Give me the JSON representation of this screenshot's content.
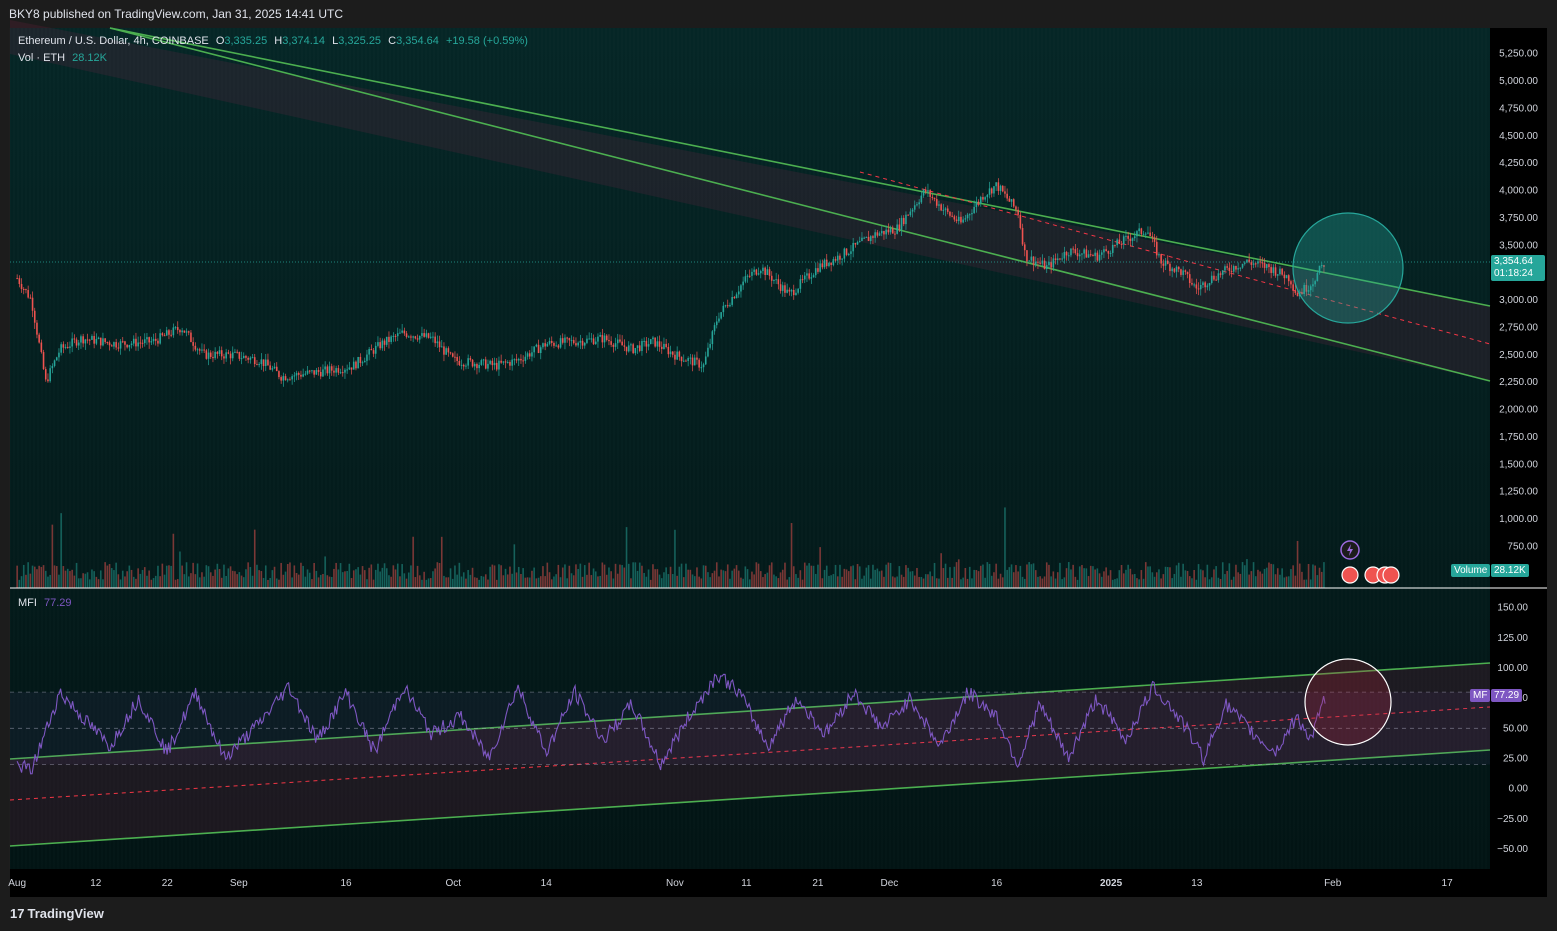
{
  "published": "BKY8 published on TradingView.com, Jan 31, 2025 14:41 UTC",
  "symbol": {
    "title": "Ethereum / U.S. Dollar, 4h, COINBASE",
    "open_label": "O",
    "open": "3,335.25",
    "high_label": "H",
    "high": "3,374.14",
    "low_label": "L",
    "low": "3,325.25",
    "close_label": "C",
    "close": "3,354.64",
    "change": "+19.58 (+0.59%)"
  },
  "volume": {
    "label": "Vol · ETH",
    "value": "28.12K",
    "tag_label": "Volume",
    "tag_value": "28.12K"
  },
  "last_price": {
    "value": "3,354.64",
    "countdown": "01:18:24"
  },
  "mfi": {
    "label": "MFI",
    "value": "77.29",
    "tag_label": "MF",
    "tag_value": "77.29"
  },
  "footer": {
    "brand": "TradingView"
  },
  "colors": {
    "background": "#041e1e",
    "up": "#26a69a",
    "down": "#ef5350",
    "channel": "#4caf50",
    "mfi_line": "#7e57c2",
    "midline": "#f23645"
  },
  "chart_data": [
    {
      "type": "line",
      "title": "Ethereum / U.S. Dollar, 4h, COINBASE",
      "y_ticks": [
        "5,250.00",
        "5,000.00",
        "4,750.00",
        "4,500.00",
        "4,250.00",
        "4,000.00",
        "3,750.00",
        "3,500.00",
        "3,000.00",
        "2,750.00",
        "2,500.00",
        "2,250.00",
        "2,000.00",
        "1,750.00",
        "1,500.00",
        "1,250.00",
        "1,000.00",
        "750.00"
      ],
      "ylim": [
        500,
        5400
      ],
      "x_ticks": [
        "Aug",
        "12",
        "22",
        "Sep",
        "16",
        "Oct",
        "14",
        "Nov",
        "11",
        "21",
        "Dec",
        "16",
        "2025",
        "13",
        "Feb",
        "17"
      ],
      "series": [
        {
          "x": [
            "2024-08-01",
            "2024-08-03",
            "2024-08-05",
            "2024-08-07",
            "2024-08-10",
            "2024-08-15",
            "2024-08-20",
            "2024-08-24",
            "2024-08-27",
            "2024-08-31",
            "2024-09-04",
            "2024-09-07",
            "2024-09-13",
            "2024-09-17",
            "2024-09-21",
            "2024-09-24",
            "2024-09-28",
            "2024-10-01",
            "2024-10-07",
            "2024-10-10",
            "2024-10-14",
            "2024-10-18",
            "2024-10-22",
            "2024-10-26",
            "2024-10-29",
            "2024-11-01",
            "2024-11-05",
            "2024-11-07",
            "2024-11-11",
            "2024-11-13",
            "2024-11-17",
            "2024-11-21",
            "2024-11-24",
            "2024-11-29",
            "2024-12-02",
            "2024-12-06",
            "2024-12-09",
            "2024-12-11",
            "2024-12-14",
            "2024-12-16",
            "2024-12-19",
            "2024-12-20",
            "2024-12-23",
            "2024-12-26",
            "2024-12-30",
            "2025-01-03",
            "2025-01-06",
            "2025-01-08",
            "2025-01-11",
            "2025-01-13",
            "2025-01-15",
            "2025-01-18",
            "2025-01-20",
            "2025-01-23",
            "2025-01-26",
            "2025-01-27",
            "2025-01-29",
            "2025-01-31"
          ],
          "close": [
            3200,
            3000,
            2250,
            2550,
            2650,
            2600,
            2620,
            2750,
            2500,
            2500,
            2450,
            2300,
            2350,
            2400,
            2600,
            2700,
            2650,
            2450,
            2400,
            2450,
            2600,
            2620,
            2650,
            2550,
            2620,
            2500,
            2400,
            2850,
            3200,
            3300,
            3050,
            3300,
            3400,
            3600,
            3650,
            4000,
            3800,
            3700,
            3950,
            4050,
            3800,
            3400,
            3300,
            3450,
            3400,
            3550,
            3650,
            3350,
            3250,
            3100,
            3200,
            3300,
            3350,
            3300,
            3200,
            3050,
            3150,
            3354.64
          ]
        }
      ],
      "last_price": 3354.64
    },
    {
      "type": "line",
      "title": "MFI",
      "y_ticks": [
        "150.00",
        "125.00",
        "100.00",
        "75.00",
        "50.00",
        "25.00",
        "0.00",
        "−25.00",
        "−50.00"
      ],
      "ylim": [
        -65,
        165
      ],
      "levels": [
        80,
        50,
        20
      ],
      "series": [
        {
          "name": "MFI",
          "x": [
            "2024-08-01",
            "2024-08-03",
            "2024-08-07",
            "2024-08-10",
            "2024-08-14",
            "2024-08-18",
            "2024-08-22",
            "2024-08-26",
            "2024-08-30",
            "2024-09-04",
            "2024-09-08",
            "2024-09-12",
            "2024-09-16",
            "2024-09-20",
            "2024-09-24",
            "2024-09-28",
            "2024-10-02",
            "2024-10-06",
            "2024-10-10",
            "2024-10-14",
            "2024-10-18",
            "2024-10-22",
            "2024-10-26",
            "2024-10-30",
            "2024-11-03",
            "2024-11-07",
            "2024-11-10",
            "2024-11-14",
            "2024-11-18",
            "2024-11-22",
            "2024-11-26",
            "2024-11-30",
            "2024-12-04",
            "2024-12-08",
            "2024-12-12",
            "2024-12-16",
            "2024-12-19",
            "2024-12-22",
            "2024-12-26",
            "2024-12-30",
            "2025-01-03",
            "2025-01-07",
            "2025-01-11",
            "2025-01-14",
            "2025-01-17",
            "2025-01-21",
            "2025-01-24",
            "2025-01-27",
            "2025-01-29",
            "2025-01-31"
          ],
          "values": [
            20,
            15,
            80,
            60,
            35,
            75,
            30,
            80,
            25,
            55,
            85,
            40,
            80,
            30,
            85,
            45,
            60,
            25,
            85,
            30,
            80,
            40,
            70,
            20,
            60,
            95,
            80,
            35,
            75,
            45,
            80,
            50,
            75,
            35,
            80,
            60,
            20,
            70,
            25,
            75,
            40,
            85,
            55,
            25,
            70,
            45,
            30,
            60,
            40,
            77.29
          ]
        }
      ],
      "last_value": 77.29
    }
  ]
}
